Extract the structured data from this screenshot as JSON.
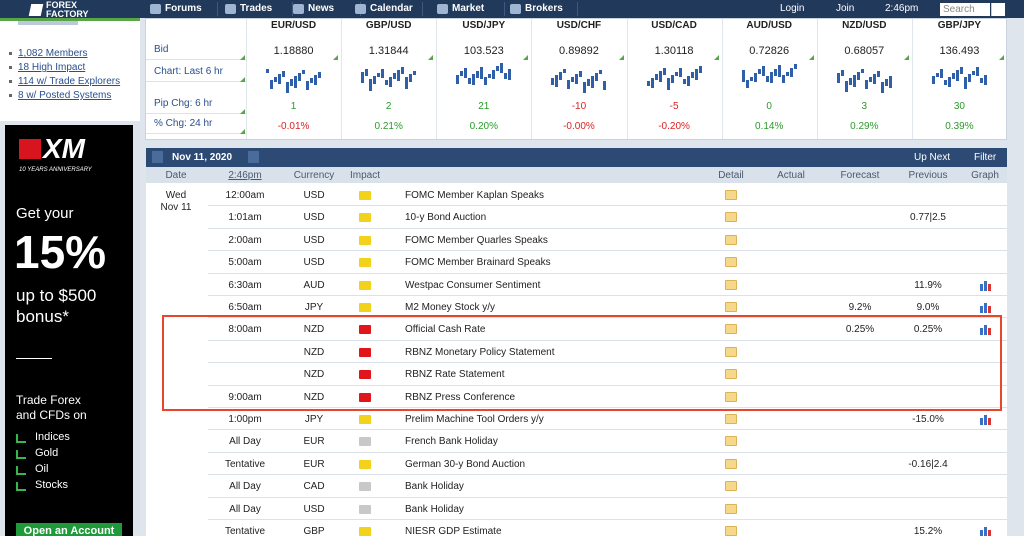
{
  "nav": {
    "logo": [
      "FOREX",
      "FACTORY"
    ],
    "items": [
      "Forums",
      "Trades",
      "News",
      "Calendar",
      "Market",
      "Brokers"
    ],
    "login": "Login",
    "join": "Join",
    "time": "2:46pm",
    "search": "Search"
  },
  "sidebar": {
    "links": [
      "1,082 Members",
      "18 High Impact",
      "114 w/ Trade Explorers",
      "8 w/ Posted Systems"
    ]
  },
  "ad": {
    "brand": "XM",
    "tagline": "10 YEARS ANNIVERSARY",
    "intro": "Get your",
    "big": "15%",
    "offer": [
      "up to $500",
      "bonus*"
    ],
    "pitch": [
      "Trade Forex",
      "and CFDs on"
    ],
    "assets": [
      "Indices",
      "Gold",
      "Oil",
      "Stocks"
    ],
    "button": "Open an Account"
  },
  "market": {
    "row_labels": [
      "Bid",
      "Chart: Last 6 hr",
      "Pip Chg: 6 hr",
      "% Chg: 24 hr"
    ],
    "pairs": [
      {
        "symbol": "EUR/USD",
        "bid": "1.18880",
        "pip_change": 1,
        "pct_change": "-0.01%"
      },
      {
        "symbol": "GBP/USD",
        "bid": "1.31844",
        "pip_change": 2,
        "pct_change": "0.21%"
      },
      {
        "symbol": "USD/JPY",
        "bid": "103.523",
        "pip_change": 21,
        "pct_change": "0.20%"
      },
      {
        "symbol": "USD/CHF",
        "bid": "0.89892",
        "pip_change": -10,
        "pct_change": "-0.00%"
      },
      {
        "symbol": "USD/CAD",
        "bid": "1.30118",
        "pip_change": -5,
        "pct_change": "-0.20%"
      },
      {
        "symbol": "AUD/USD",
        "bid": "0.72826",
        "pip_change": 0,
        "pct_change": "0.14%"
      },
      {
        "symbol": "NZD/USD",
        "bid": "0.68057",
        "pip_change": 3,
        "pct_change": "0.29%"
      },
      {
        "symbol": "GBP/JPY",
        "bid": "136.493",
        "pip_change": 30,
        "pct_change": "0.39%"
      }
    ]
  },
  "calendar": {
    "date": "Nov 11, 2020",
    "up_next": "Up Next",
    "filter": "Filter",
    "columns": [
      "Date",
      "2:46pm",
      "Currency",
      "Impact",
      "Detail",
      "Actual",
      "Forecast",
      "Previous",
      "Graph"
    ],
    "day": [
      "Wed",
      "Nov 11"
    ],
    "events": [
      {
        "time": "12:00am",
        "currency": "USD",
        "impact": "#f2d21b",
        "event": "FOMC Member Kaplan Speaks",
        "graph": false
      },
      {
        "time": "1:01am",
        "currency": "USD",
        "impact": "#f2d21b",
        "event": "10-y Bond Auction",
        "previous": "0.77|2.5",
        "graph": false
      },
      {
        "time": "2:00am",
        "currency": "USD",
        "impact": "#f2d21b",
        "event": "FOMC Member Quarles Speaks",
        "graph": false
      },
      {
        "time": "5:00am",
        "currency": "USD",
        "impact": "#f2d21b",
        "event": "FOMC Member Brainard Speaks",
        "graph": false
      },
      {
        "time": "6:30am",
        "currency": "AUD",
        "impact": "#f2d21b",
        "event": "Westpac Consumer Sentiment",
        "previous": "11.9%",
        "graph": true
      },
      {
        "time": "6:50am",
        "currency": "JPY",
        "impact": "#f2d21b",
        "event": "M2 Money Stock y/y",
        "forecast": "9.2%",
        "previous": "9.0%",
        "graph": true
      },
      {
        "time": "8:00am",
        "currency": "NZD",
        "impact": "#e0161b",
        "event": "Official Cash Rate",
        "forecast": "0.25%",
        "previous": "0.25%",
        "graph": true
      },
      {
        "time": null,
        "currency": "NZD",
        "impact": "#e0161b",
        "event": "RBNZ Monetary Policy Statement",
        "graph": false
      },
      {
        "time": null,
        "currency": "NZD",
        "impact": "#e0161b",
        "event": "RBNZ Rate Statement",
        "graph": false
      },
      {
        "time": "9:00am",
        "currency": "NZD",
        "impact": "#e0161b",
        "event": "RBNZ Press Conference",
        "graph": false
      },
      {
        "time": "1:00pm",
        "currency": "JPY",
        "impact": "#f2d21b",
        "event": "Prelim Machine Tool Orders y/y",
        "previous": "-15.0%",
        "graph": true
      },
      {
        "time": "All Day",
        "currency": "EUR",
        "impact": "#c8c8c8",
        "event": "French Bank Holiday",
        "graph": false
      },
      {
        "time": "Tentative",
        "currency": "EUR",
        "impact": "#f2d21b",
        "event": "German 30-y Bond Auction",
        "previous": "-0.16|2.4",
        "graph": false
      },
      {
        "time": "All Day",
        "currency": "CAD",
        "impact": "#c8c8c8",
        "event": "Bank Holiday",
        "graph": false
      },
      {
        "time": "All Day",
        "currency": "USD",
        "impact": "#c8c8c8",
        "event": "Bank Holiday",
        "graph": false
      },
      {
        "time": "Tentative",
        "currency": "GBP",
        "impact": "#f2d21b",
        "event": "NIESR GDP Estimate",
        "previous": "15.2%",
        "graph": true
      }
    ]
  }
}
